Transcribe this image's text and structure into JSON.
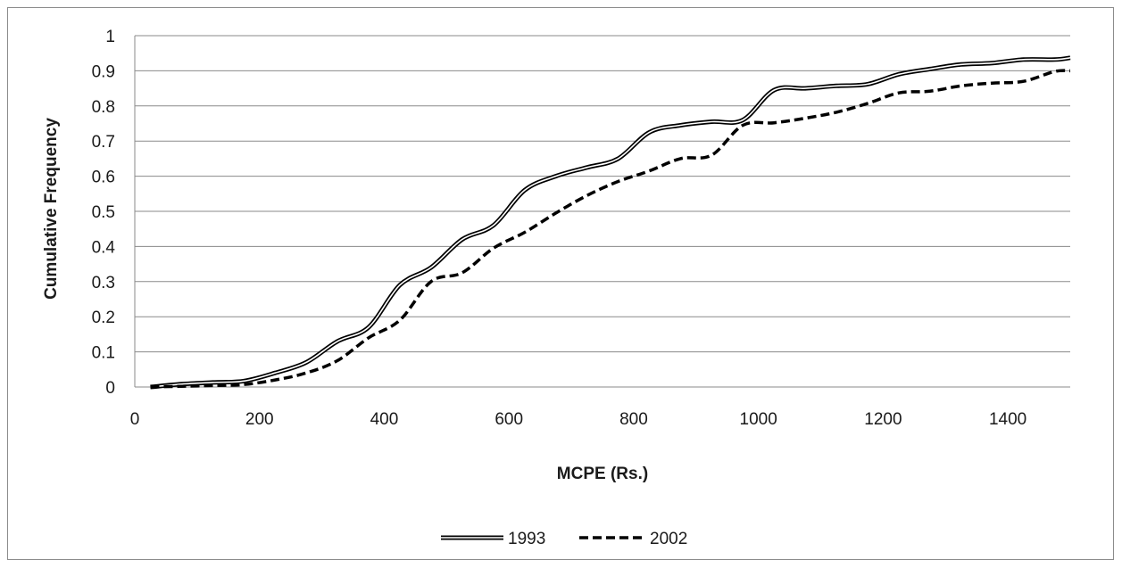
{
  "chart_data": {
    "type": "line",
    "title": "",
    "xlabel": "MCPE (Rs.)",
    "ylabel": "Cumulative Frequency",
    "xlim": [
      0,
      1500
    ],
    "ylim": [
      0,
      1
    ],
    "x_ticks": [
      "0",
      "200",
      "400",
      "600",
      "800",
      "1000",
      "1200",
      "1400"
    ],
    "y_ticks": [
      "0",
      "0.1",
      "0.2",
      "0.3",
      "0.4",
      "0.5",
      "0.6",
      "0.7",
      "0.8",
      "0.9",
      "1"
    ],
    "grid": "horizontal",
    "legend_position": "bottom",
    "series": [
      {
        "name": "1993",
        "style": "double-line",
        "color": "#000000",
        "x": [
          25,
          75,
          125,
          175,
          225,
          275,
          325,
          375,
          425,
          475,
          525,
          575,
          625,
          675,
          725,
          775,
          825,
          875,
          925,
          975,
          1025,
          1075,
          1125,
          1175,
          1225,
          1275,
          1325,
          1375,
          1425,
          1475,
          1500
        ],
        "y": [
          0.0,
          0.008,
          0.013,
          0.017,
          0.04,
          0.07,
          0.13,
          0.17,
          0.29,
          0.34,
          0.42,
          0.46,
          0.56,
          0.6,
          0.625,
          0.65,
          0.725,
          0.745,
          0.755,
          0.76,
          0.845,
          0.85,
          0.857,
          0.862,
          0.89,
          0.905,
          0.918,
          0.922,
          0.932,
          0.932,
          0.937
        ]
      },
      {
        "name": "2002",
        "style": "dashed",
        "color": "#000000",
        "x": [
          25,
          75,
          125,
          175,
          225,
          275,
          325,
          375,
          425,
          475,
          525,
          575,
          625,
          675,
          725,
          775,
          825,
          875,
          925,
          975,
          1025,
          1075,
          1125,
          1175,
          1225,
          1275,
          1325,
          1375,
          1425,
          1475,
          1500
        ],
        "y": [
          0.0,
          0.002,
          0.004,
          0.007,
          0.02,
          0.04,
          0.075,
          0.14,
          0.19,
          0.3,
          0.325,
          0.395,
          0.44,
          0.495,
          0.545,
          0.585,
          0.615,
          0.65,
          0.66,
          0.745,
          0.752,
          0.765,
          0.782,
          0.807,
          0.837,
          0.842,
          0.857,
          0.865,
          0.87,
          0.898,
          0.9
        ]
      }
    ]
  }
}
